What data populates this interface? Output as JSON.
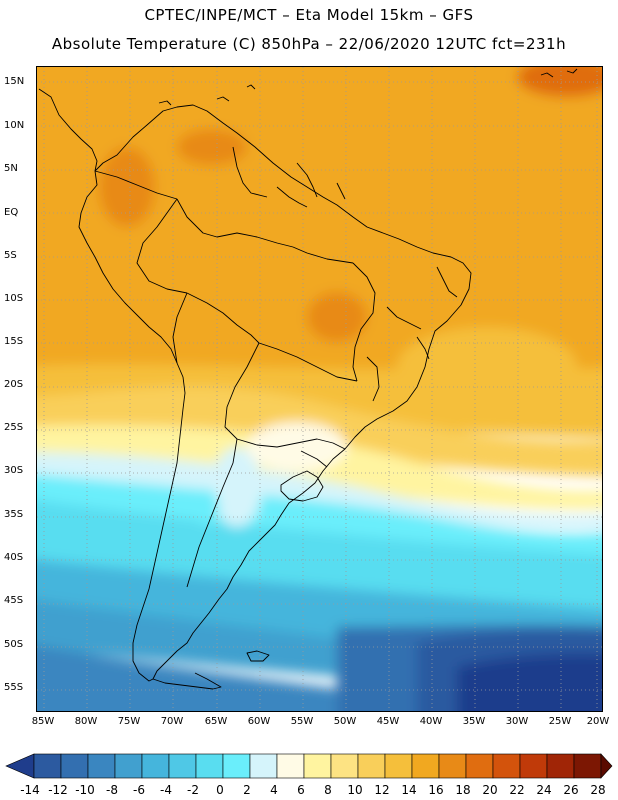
{
  "title": {
    "line1": "CPTEC/INPE/MCT –  Eta Model 15km – GFS",
    "line2": "Absolute Temperature (C) 850hPa – 22/06/2020 12UTC fct=231h"
  },
  "map": {
    "lat_labels": [
      "15N",
      "10N",
      "5N",
      "EQ",
      "5S",
      "10S",
      "15S",
      "20S",
      "25S",
      "30S",
      "35S",
      "40S",
      "45S",
      "50S",
      "55S"
    ],
    "lon_labels": [
      "85W",
      "80W",
      "75W",
      "70W",
      "65W",
      "60W",
      "55W",
      "50W",
      "45W",
      "40W",
      "35W",
      "30W",
      "25W",
      "20W"
    ],
    "lon_range": [
      -85,
      -20
    ],
    "lat_range": [
      -57,
      16
    ],
    "grid": true
  },
  "colorbar": {
    "levels": [
      "-14",
      "-12",
      "-10",
      "-8",
      "-6",
      "-4",
      "-2",
      "0",
      "2",
      "4",
      "6",
      "8",
      "10",
      "12",
      "14",
      "16",
      "18",
      "20",
      "22",
      "24",
      "26",
      "28"
    ],
    "colors": [
      "#1f3d8c",
      "#2c5aa0",
      "#336fb0",
      "#3a86c0",
      "#41a0cf",
      "#45b5dc",
      "#4fc8e6",
      "#59ddf0",
      "#6aeefb",
      "#d5f4fb",
      "#fffbe6",
      "#fff4a0",
      "#fde383",
      "#f9cf5a",
      "#f5bf3b",
      "#f1a820",
      "#e88a17",
      "#e06d10",
      "#d3530c",
      "#c03a09",
      "#a02506",
      "#7c1703",
      "#5a0a00"
    ]
  }
}
